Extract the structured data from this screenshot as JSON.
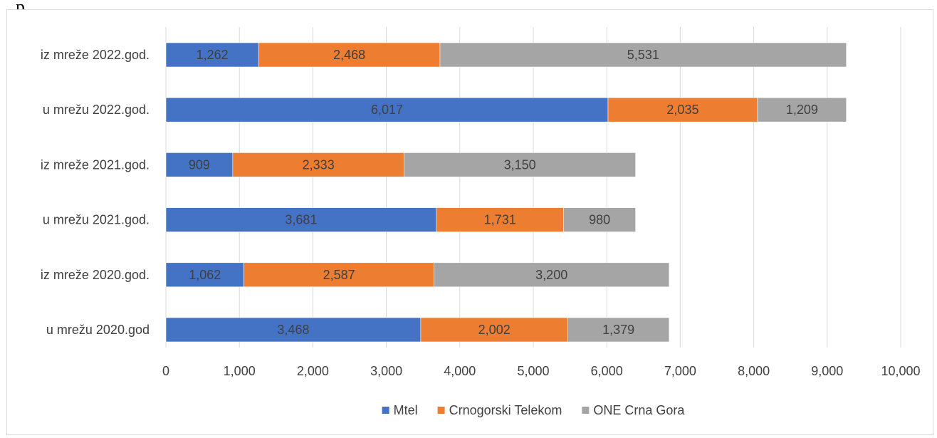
{
  "page": {
    "fragment_text": "p"
  },
  "chart_data": {
    "type": "bar",
    "orientation": "horizontal",
    "stacked": true,
    "categories": [
      "iz mreže 2022.god.",
      "u mrežu 2022.god.",
      "iz mreže 2021.god.",
      "u mrežu 2021.god.",
      "iz mreže 2020.god.",
      "u mrežu 2020.god"
    ],
    "series": [
      {
        "name": "Mtel",
        "color": "#4472c4",
        "values": [
          1262,
          6017,
          909,
          3681,
          1062,
          3468
        ],
        "labels": [
          "1,262",
          "6,017",
          "909",
          "3,681",
          "1,062",
          "3,468"
        ]
      },
      {
        "name": "Crnogorski Telekom",
        "color": "#ed7d31",
        "values": [
          2468,
          2035,
          2333,
          1731,
          2587,
          2002
        ],
        "labels": [
          "2,468",
          "2,035",
          "2,333",
          "1,731",
          "2,587",
          "2,002"
        ]
      },
      {
        "name": "ONE Crna Gora",
        "color": "#a5a5a5",
        "values": [
          5531,
          1209,
          3150,
          980,
          3200,
          1379
        ],
        "labels": [
          "5,531",
          "1,209",
          "3,150",
          "980",
          "3,200",
          "1,379"
        ]
      }
    ],
    "xlim": [
      0,
      10000
    ],
    "x_ticks": [
      0,
      1000,
      2000,
      3000,
      4000,
      5000,
      6000,
      7000,
      8000,
      9000,
      10000
    ],
    "x_tick_labels": [
      "0",
      "1,000",
      "2,000",
      "3,000",
      "4,000",
      "5,000",
      "6,000",
      "7,000",
      "8,000",
      "9,000",
      "10,000"
    ],
    "grid": true,
    "gridline_color": "#d9d9d9",
    "legend_position": "bottom",
    "title": "",
    "xlabel": "",
    "ylabel": ""
  }
}
